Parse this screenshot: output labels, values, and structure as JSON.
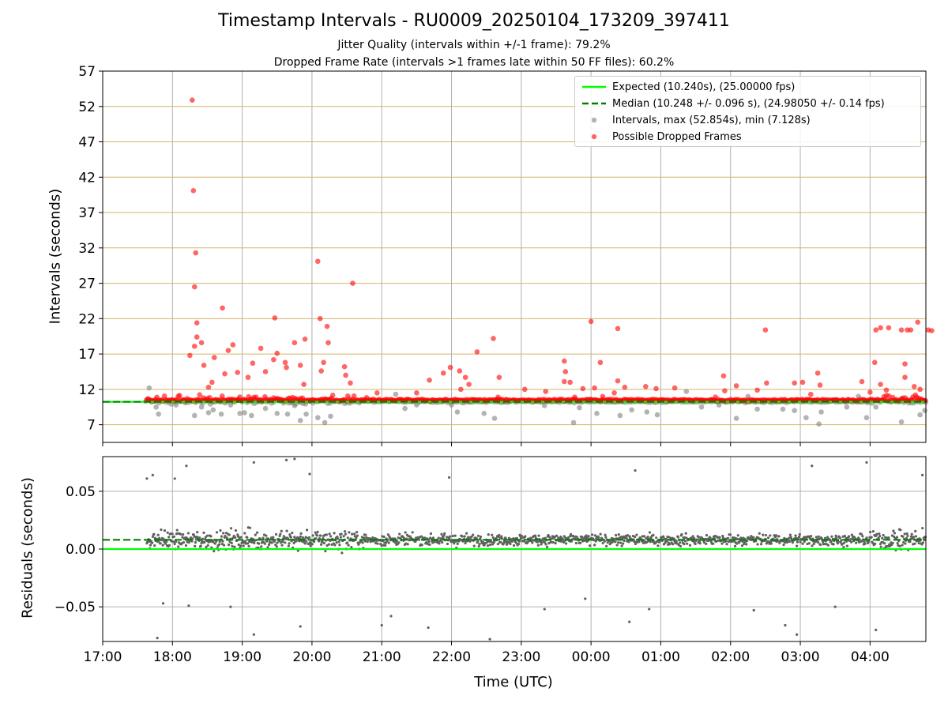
{
  "title": "Timestamp Intervals - RU0009_20250104_173209_397411",
  "subtitle_1": "Jitter Quality (intervals within +/-1 frame): 79.2%",
  "subtitle_2": "Dropped Frame Rate (intervals >1 frames late within 50 FF files): 60.2%",
  "colors": {
    "expected": "#00ff00",
    "median": "#008000",
    "intervals": "#808080",
    "dropped": "#ff0000",
    "grid_top": "#d4b46a",
    "grid": "#b0b0b0",
    "residual_points": "#606060"
  },
  "chart_data": [
    {
      "type": "scatter",
      "panel": "top",
      "ylabel": "Intervals (seconds)",
      "ylim": [
        4.5,
        57
      ],
      "yticks": [
        "7",
        "12",
        "17",
        "22",
        "27",
        "32",
        "37",
        "42",
        "47",
        "52",
        "57"
      ],
      "x_range_hours": [
        17.0,
        28.8
      ],
      "reference_lines": {
        "expected": 10.24,
        "median": 10.248
      },
      "legend": [
        "Expected (10.240s), (25.00000 fps)",
        "Median (10.248 +/- 0.096 s), (24.98050 +/- 0.14 fps)",
        "Intervals, max (52.854s), min (7.128s)",
        "Possible Dropped Frames"
      ],
      "legend_position": "upper-right",
      "dropped_frame_points": [
        [
          "18:17",
          52.9
        ],
        [
          "18:18",
          40.1
        ],
        [
          "18:20",
          31.3
        ],
        [
          "18:19",
          26.5
        ],
        [
          "18:21",
          21.4
        ],
        [
          "18:19",
          18.1
        ],
        [
          "18:21",
          19.4
        ],
        [
          "18:25",
          18.6
        ],
        [
          "18:15",
          16.8
        ],
        [
          "18:27",
          15.4
        ],
        [
          "18:31",
          12.3
        ],
        [
          "18:34",
          13.0
        ],
        [
          "18:36",
          16.5
        ],
        [
          "18:43",
          23.5
        ],
        [
          "18:45",
          14.2
        ],
        [
          "18:52",
          18.3
        ],
        [
          "18:48",
          17.5
        ],
        [
          "18:56",
          14.4
        ],
        [
          "19:05",
          13.7
        ],
        [
          "19:09",
          15.7
        ],
        [
          "19:16",
          17.8
        ],
        [
          "19:20",
          14.5
        ],
        [
          "19:27",
          16.2
        ],
        [
          "19:28",
          22.1
        ],
        [
          "19:30",
          17.1
        ],
        [
          "19:38",
          15.1
        ],
        [
          "19:37",
          15.8
        ],
        [
          "19:45",
          18.6
        ],
        [
          "19:50",
          15.4
        ],
        [
          "19:54",
          19.1
        ],
        [
          "19:53",
          12.7
        ],
        [
          "20:05",
          30.1
        ],
        [
          "20:07",
          22.0
        ],
        [
          "20:10",
          15.8
        ],
        [
          "20:13",
          20.9
        ],
        [
          "20:14",
          18.6
        ],
        [
          "20:08",
          14.6
        ],
        [
          "20:28",
          15.2
        ],
        [
          "20:29",
          14.0
        ],
        [
          "20:35",
          27.0
        ],
        [
          "20:33",
          12.9
        ],
        [
          "20:56",
          11.5
        ],
        [
          "21:30",
          11.5
        ],
        [
          "21:41",
          13.3
        ],
        [
          "21:53",
          14.3
        ],
        [
          "21:59",
          15.1
        ],
        [
          "22:07",
          14.6
        ],
        [
          "22:08",
          12.0
        ],
        [
          "22:12",
          13.7
        ],
        [
          "22:15",
          12.7
        ],
        [
          "22:22",
          17.3
        ],
        [
          "22:36",
          19.2
        ],
        [
          "22:41",
          13.7
        ],
        [
          "22:40",
          10.9
        ],
        [
          "23:03",
          12.0
        ],
        [
          "23:21",
          11.7
        ],
        [
          "23:37",
          16.0
        ],
        [
          "23:38",
          14.5
        ],
        [
          "23:42",
          13.0
        ],
        [
          "23:37",
          13.1
        ],
        [
          "23:46",
          10.9
        ],
        [
          "23:53",
          12.1
        ],
        [
          "00:00",
          21.6
        ],
        [
          "00:08",
          15.8
        ],
        [
          "00:03",
          12.2
        ],
        [
          "00:10",
          11.0
        ],
        [
          "00:20",
          11.5
        ],
        [
          "00:23",
          20.6
        ],
        [
          "00:23",
          13.2
        ],
        [
          "00:29",
          12.3
        ],
        [
          "00:47",
          12.4
        ],
        [
          "00:56",
          12.1
        ],
        [
          "01:12",
          12.2
        ],
        [
          "01:47",
          10.9
        ],
        [
          "01:54",
          13.9
        ],
        [
          "01:55",
          11.8
        ],
        [
          "02:05",
          12.5
        ],
        [
          "02:23",
          11.9
        ],
        [
          "02:30",
          20.4
        ],
        [
          "02:31",
          12.9
        ],
        [
          "02:55",
          12.9
        ],
        [
          "03:02",
          13.0
        ],
        [
          "03:09",
          11.3
        ],
        [
          "03:15",
          14.3
        ],
        [
          "03:17",
          12.6
        ],
        [
          "03:53",
          13.1
        ],
        [
          "04:00",
          11.6
        ],
        [
          "04:04",
          15.8
        ],
        [
          "04:05",
          20.4
        ],
        [
          "04:09",
          20.7
        ],
        [
          "04:16",
          20.7
        ],
        [
          "04:09",
          12.7
        ],
        [
          "04:14",
          11.9
        ],
        [
          "04:27",
          20.4
        ],
        [
          "04:30",
          15.6
        ],
        [
          "04:30",
          13.7
        ],
        [
          "04:32",
          20.4
        ],
        [
          "04:35",
          20.4
        ],
        [
          "04:41",
          21.5
        ],
        [
          "04:38",
          12.4
        ],
        [
          "04:43",
          12.0
        ],
        [
          "04:50",
          20.4
        ],
        [
          "04:53",
          20.3
        ]
      ],
      "interval_points": [
        [
          "17:37",
          10.3
        ],
        [
          "17:40",
          12.2
        ],
        [
          "17:46",
          9.5
        ],
        [
          "17:48",
          8.5
        ],
        [
          "18:03",
          9.8
        ],
        [
          "18:11",
          10.1
        ],
        [
          "18:19",
          8.3
        ],
        [
          "18:25",
          9.5
        ],
        [
          "18:31",
          8.7
        ],
        [
          "18:35",
          9.1
        ],
        [
          "18:42",
          8.5
        ],
        [
          "18:50",
          9.8
        ],
        [
          "18:58",
          8.6
        ],
        [
          "19:02",
          8.7
        ],
        [
          "19:08",
          8.3
        ],
        [
          "19:20",
          9.3
        ],
        [
          "19:30",
          8.6
        ],
        [
          "19:39",
          8.5
        ],
        [
          "19:45",
          9.7
        ],
        [
          "19:50",
          7.6
        ],
        [
          "19:55",
          8.5
        ],
        [
          "20:05",
          8.0
        ],
        [
          "20:11",
          7.3
        ],
        [
          "20:16",
          8.2
        ],
        [
          "21:12",
          11.3
        ],
        [
          "21:20",
          9.3
        ],
        [
          "21:30",
          9.8
        ],
        [
          "22:00",
          9.8
        ],
        [
          "22:05",
          8.8
        ],
        [
          "22:28",
          8.6
        ],
        [
          "22:37",
          7.9
        ],
        [
          "22:40",
          10.6
        ],
        [
          "23:20",
          9.7
        ],
        [
          "23:45",
          7.3
        ],
        [
          "23:50",
          9.4
        ],
        [
          "00:05",
          8.6
        ],
        [
          "00:25",
          8.3
        ],
        [
          "00:35",
          9.1
        ],
        [
          "00:48",
          8.8
        ],
        [
          "00:57",
          8.4
        ],
        [
          "01:22",
          11.7
        ],
        [
          "01:35",
          9.5
        ],
        [
          "01:50",
          9.8
        ],
        [
          "02:05",
          7.9
        ],
        [
          "02:15",
          11.0
        ],
        [
          "02:23",
          9.2
        ],
        [
          "02:45",
          9.2
        ],
        [
          "02:55",
          9.0
        ],
        [
          "03:05",
          8.0
        ],
        [
          "03:16",
          7.1
        ],
        [
          "03:18",
          8.8
        ],
        [
          "03:30",
          10.5
        ],
        [
          "03:40",
          9.5
        ],
        [
          "03:50",
          11.0
        ],
        [
          "03:57",
          8.0
        ],
        [
          "04:05",
          9.5
        ],
        [
          "04:27",
          7.4
        ],
        [
          "04:43",
          8.4
        ],
        [
          "04:47",
          9.0
        ]
      ],
      "dense_band": {
        "from": "17:38",
        "to": "04:48",
        "level": 10.24
      }
    },
    {
      "type": "scatter",
      "panel": "bottom",
      "ylabel": "Residuals (seconds)",
      "ylim": [
        -0.08,
        0.08
      ],
      "yticks": [
        "0.05",
        "0.00",
        "−0.05"
      ],
      "xlabel": "Time (UTC)",
      "xticks": [
        "17:00",
        "18:00",
        "19:00",
        "20:00",
        "21:00",
        "22:00",
        "23:00",
        "00:00",
        "01:00",
        "02:00",
        "03:00",
        "04:00"
      ],
      "reference_lines": {
        "expected": 0.0,
        "median": 0.008
      },
      "residual_range": [
        -0.077,
        0.079
      ],
      "outlier_points": [
        [
          "17:38",
          0.061
        ],
        [
          "17:43",
          0.064
        ],
        [
          "17:47",
          -0.077
        ],
        [
          "17:52",
          -0.047
        ],
        [
          "18:02",
          0.061
        ],
        [
          "18:12",
          0.072
        ],
        [
          "18:14",
          -0.049
        ],
        [
          "18:50",
          -0.05
        ],
        [
          "19:10",
          -0.074
        ],
        [
          "19:10",
          0.075
        ],
        [
          "19:38",
          0.077
        ],
        [
          "19:45",
          0.078
        ],
        [
          "19:50",
          -0.067
        ],
        [
          "19:58",
          0.065
        ],
        [
          "21:00",
          -0.066
        ],
        [
          "21:08",
          -0.058
        ],
        [
          "21:40",
          -0.068
        ],
        [
          "21:58",
          0.062
        ],
        [
          "22:33",
          -0.078
        ],
        [
          "23:20",
          -0.052
        ],
        [
          "23:55",
          -0.043
        ],
        [
          "00:33",
          -0.063
        ],
        [
          "00:38",
          0.068
        ],
        [
          "00:50",
          -0.052
        ],
        [
          "02:20",
          -0.053
        ],
        [
          "02:47",
          -0.066
        ],
        [
          "02:57",
          -0.074
        ],
        [
          "03:10",
          0.072
        ],
        [
          "03:30",
          -0.05
        ],
        [
          "03:57",
          0.075
        ],
        [
          "04:05",
          -0.07
        ],
        [
          "04:45",
          0.064
        ]
      ]
    }
  ],
  "axis": {
    "top_yticks": [
      "7",
      "12",
      "17",
      "22",
      "27",
      "32",
      "37",
      "42",
      "47",
      "52",
      "57"
    ],
    "bottom_yticks": [
      "0.05",
      "0.00",
      "−0.05"
    ],
    "xticks": [
      "17:00",
      "18:00",
      "19:00",
      "20:00",
      "21:00",
      "22:00",
      "23:00",
      "00:00",
      "01:00",
      "02:00",
      "03:00",
      "04:00"
    ],
    "ylabel_top": "Intervals (seconds)",
    "ylabel_bottom": "Residuals (seconds)",
    "xlabel": "Time (UTC)"
  },
  "legend": {
    "expected": "Expected (10.240s), (25.00000 fps)",
    "median": "Median (10.248 +/- 0.096 s), (24.98050 +/- 0.14 fps)",
    "intervals": "Intervals, max (52.854s), min (7.128s)",
    "dropped": "Possible Dropped Frames"
  }
}
